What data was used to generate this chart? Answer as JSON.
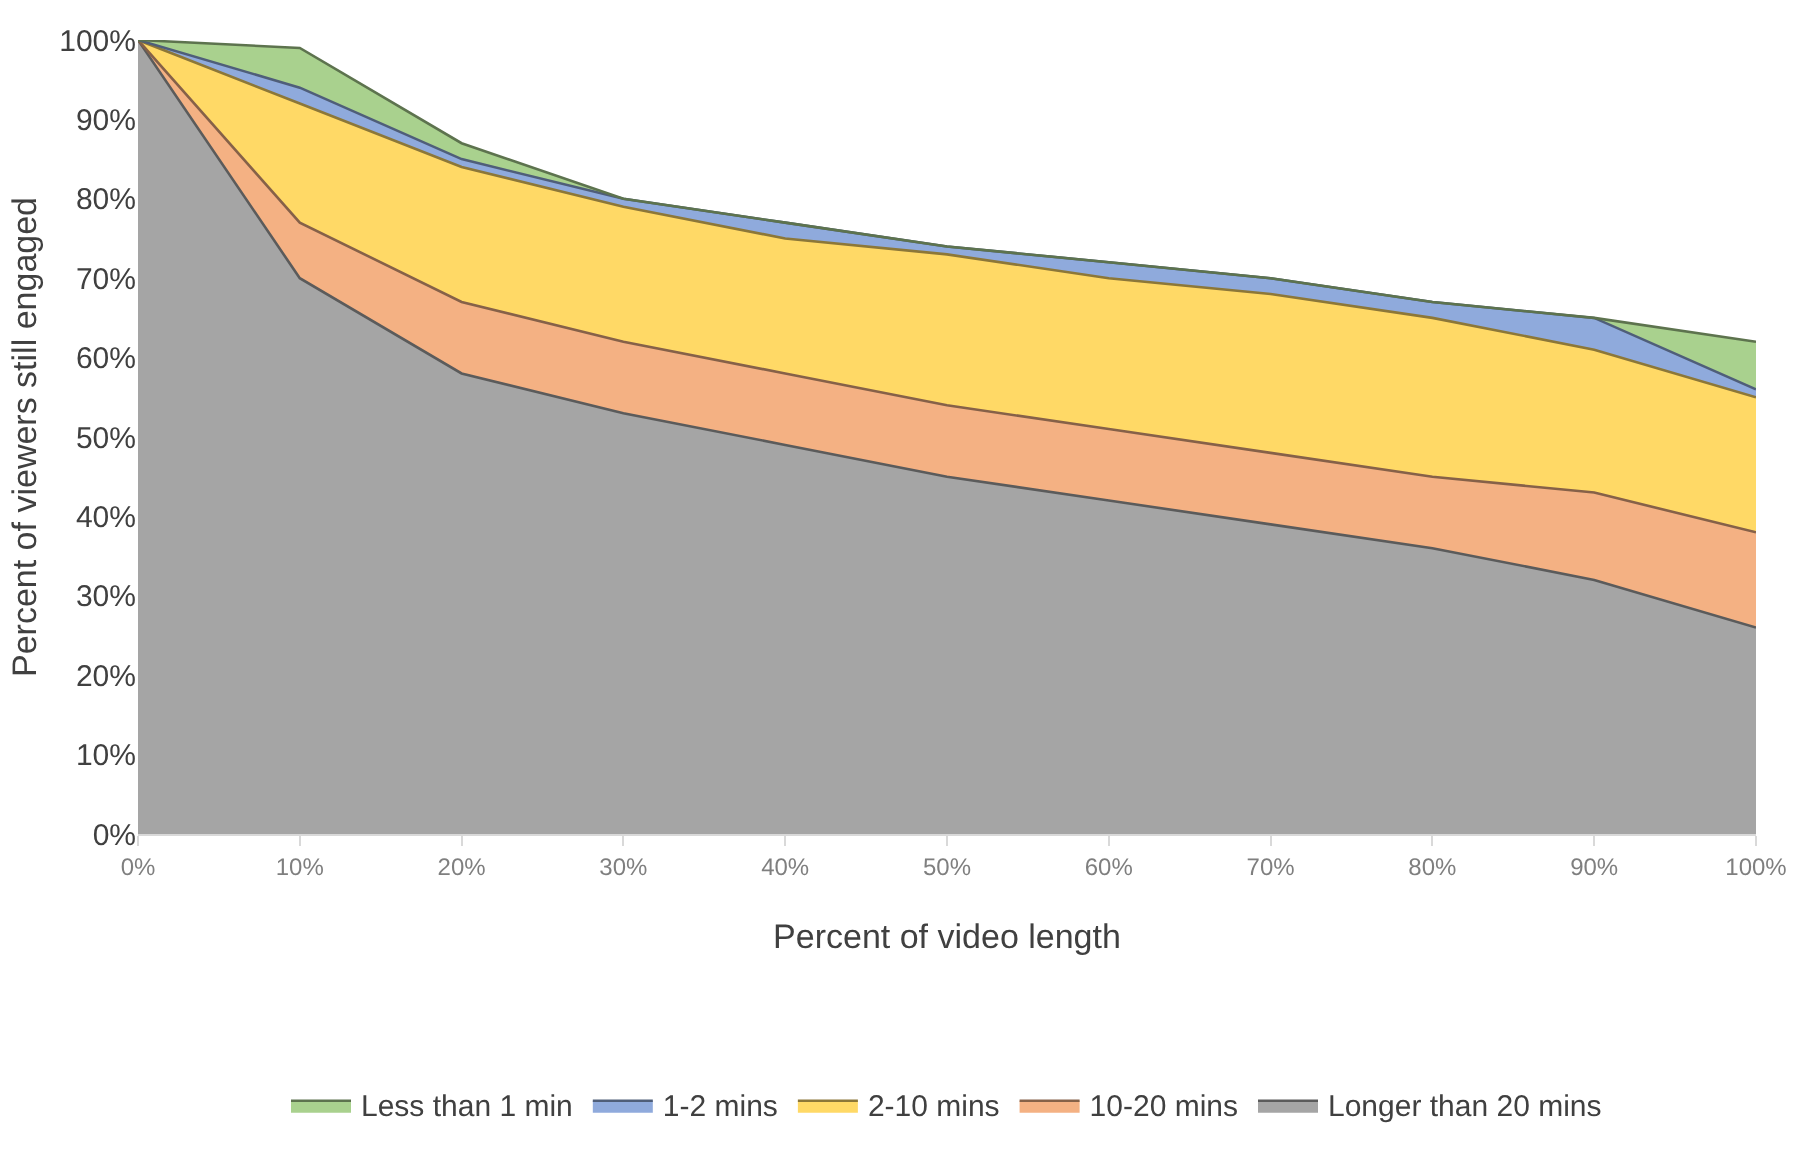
{
  "chart_data": {
    "type": "area",
    "xlabel": "Percent of video length",
    "ylabel": "Percent of viewers still engaged",
    "x": [
      0,
      10,
      20,
      30,
      40,
      50,
      60,
      70,
      80,
      90,
      100
    ],
    "series": [
      {
        "name": "Less than 1 min",
        "color": "#a9d18e",
        "values": [
          100,
          99,
          87,
          80,
          77,
          74,
          72,
          70,
          67,
          65,
          62
        ]
      },
      {
        "name": "1-2 mins",
        "color": "#8faadc",
        "values": [
          100,
          94,
          85,
          80,
          77,
          74,
          72,
          70,
          67,
          65,
          56
        ]
      },
      {
        "name": "2-10 mins",
        "color": "#ffd966",
        "values": [
          100,
          92,
          84,
          79,
          75,
          73,
          70,
          68,
          65,
          61,
          55
        ]
      },
      {
        "name": "10-20 mins",
        "color": "#f4b183",
        "values": [
          100,
          77,
          67,
          62,
          58,
          54,
          51,
          48,
          45,
          43,
          38
        ]
      },
      {
        "name": "Longer than 20 mins",
        "color": "#a5a5a5",
        "values": [
          100,
          70,
          58,
          53,
          49,
          45,
          42,
          39,
          36,
          32,
          26
        ]
      }
    ],
    "xlim": [
      0,
      100
    ],
    "xticks": [
      {
        "value": 0,
        "label": "0%"
      },
      {
        "value": 10,
        "label": "10%"
      },
      {
        "value": 20,
        "label": "20%"
      },
      {
        "value": 30,
        "label": "30%"
      },
      {
        "value": 40,
        "label": "40%"
      },
      {
        "value": 50,
        "label": "50%"
      },
      {
        "value": 60,
        "label": "60%"
      },
      {
        "value": 70,
        "label": "70%"
      },
      {
        "value": 80,
        "label": "80%"
      },
      {
        "value": 90,
        "label": "90%"
      },
      {
        "value": 100,
        "label": "100%"
      }
    ],
    "ylim": [
      0,
      100
    ],
    "yticks": [
      {
        "value": 0,
        "label": "0%"
      },
      {
        "value": 10,
        "label": "10%"
      },
      {
        "value": 20,
        "label": "20%"
      },
      {
        "value": 30,
        "label": "30%"
      },
      {
        "value": 40,
        "label": "40%"
      },
      {
        "value": 50,
        "label": "50%"
      },
      {
        "value": 60,
        "label": "60%"
      },
      {
        "value": 70,
        "label": "70%"
      },
      {
        "value": 80,
        "label": "80%"
      },
      {
        "value": 90,
        "label": "90%"
      },
      {
        "value": 100,
        "label": "100%"
      }
    ],
    "grid": false,
    "legend": "bottom"
  }
}
